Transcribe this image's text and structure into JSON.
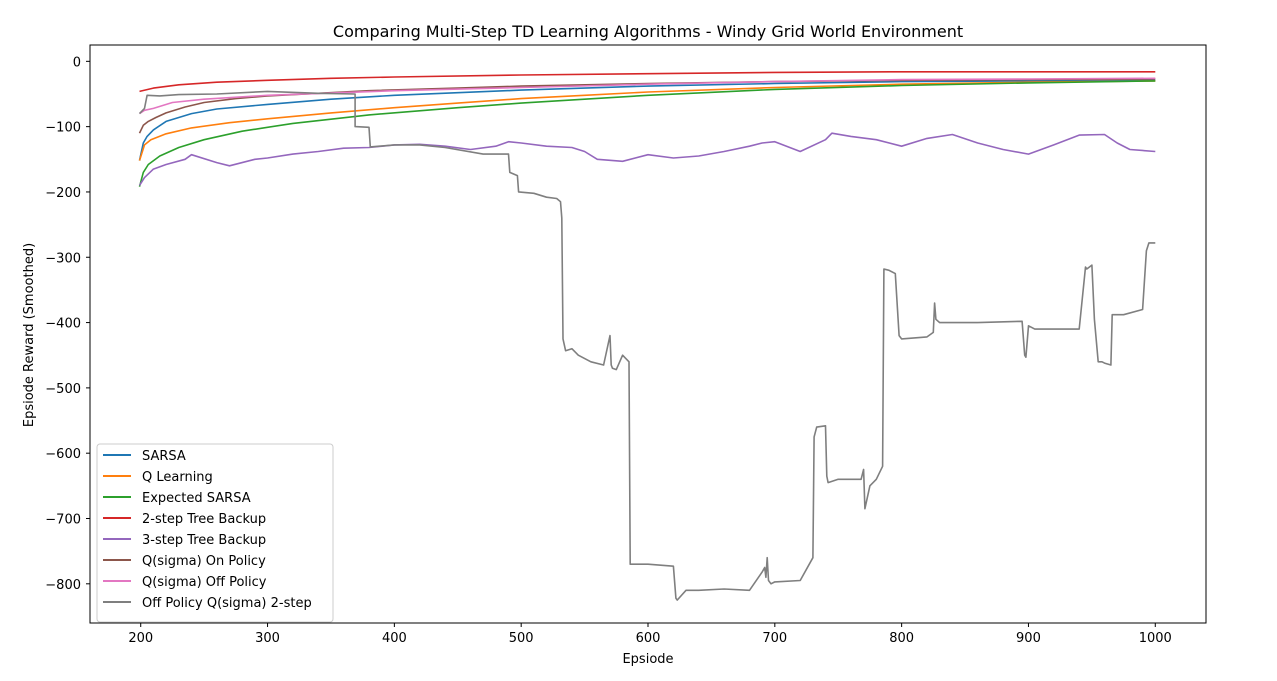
{
  "chart_data": {
    "type": "line",
    "title": "Comparing Multi-Step TD Learning Algorithms - Windy Grid World Environment",
    "xlabel": "Epsiode",
    "ylabel": "Epsiode Reward (Smoothed)",
    "xlim": [
      160,
      1040
    ],
    "ylim": [
      -860,
      25
    ],
    "xticks": [
      200,
      300,
      400,
      500,
      600,
      700,
      800,
      900,
      1000
    ],
    "yticks": [
      0,
      -100,
      -200,
      -300,
      -400,
      -500,
      -600,
      -700,
      -800
    ],
    "xtick_labels": [
      "200",
      "300",
      "400",
      "500",
      "600",
      "700",
      "800",
      "900",
      "1000"
    ],
    "ytick_labels": [
      "0",
      "−100",
      "−200",
      "−300",
      "−400",
      "−500",
      "−600",
      "−700",
      "−800"
    ],
    "grid": false,
    "legend_position": "lower-left",
    "series": [
      {
        "name": "SARSA",
        "color": "#1f77b4",
        "x": [
          199,
          202,
          205,
          210,
          220,
          240,
          260,
          300,
          350,
          400,
          500,
          600,
          700,
          800,
          900,
          1000
        ],
        "y": [
          -152,
          -125,
          -115,
          -105,
          -92,
          -80,
          -73,
          -66,
          -58,
          -52,
          -44,
          -38,
          -34,
          -31,
          -30,
          -29
        ]
      },
      {
        "name": "Q Learning",
        "color": "#ff7f0e",
        "x": [
          199,
          203,
          208,
          220,
          240,
          270,
          300,
          350,
          400,
          450,
          500,
          550,
          600,
          700,
          800,
          900,
          1000
        ],
        "y": [
          -152,
          -128,
          -120,
          -111,
          -102,
          -94,
          -88,
          -79,
          -71,
          -64,
          -57,
          -52,
          -47,
          -40,
          -35,
          -32,
          -30
        ]
      },
      {
        "name": "Expected SARSA",
        "color": "#2ca02c",
        "x": [
          199,
          202,
          206,
          215,
          230,
          250,
          280,
          320,
          380,
          450,
          500,
          550,
          600,
          700,
          800,
          900,
          1000
        ],
        "y": [
          -192,
          -170,
          -158,
          -145,
          -132,
          -120,
          -107,
          -95,
          -82,
          -71,
          -64,
          -58,
          -52,
          -43,
          -37,
          -33,
          -30
        ]
      },
      {
        "name": "2-step Tree Backup",
        "color": "#d62728",
        "x": [
          199,
          210,
          230,
          260,
          300,
          350,
          400,
          500,
          600,
          700,
          800,
          900,
          1000
        ],
        "y": [
          -46,
          -41,
          -36,
          -32,
          -29,
          -26,
          -24,
          -21,
          -19,
          -17,
          -16,
          -16,
          -16
        ]
      },
      {
        "name": "3-step Tree Backup",
        "color": "#9467bd",
        "x": [
          199,
          203,
          210,
          220,
          235,
          240,
          260,
          270,
          290,
          300,
          320,
          340,
          360,
          380,
          400,
          420,
          440,
          460,
          480,
          490,
          500,
          520,
          540,
          550,
          560,
          580,
          600,
          620,
          640,
          660,
          680,
          690,
          700,
          720,
          740,
          745,
          760,
          780,
          800,
          820,
          840,
          860,
          880,
          900,
          920,
          940,
          960,
          970,
          980,
          1000
        ],
        "y": [
          -190,
          -178,
          -165,
          -158,
          -150,
          -143,
          -155,
          -160,
          -150,
          -148,
          -142,
          -138,
          -133,
          -132,
          -128,
          -127,
          -130,
          -135,
          -130,
          -123,
          -125,
          -130,
          -132,
          -138,
          -150,
          -153,
          -143,
          -148,
          -145,
          -138,
          -130,
          -125,
          -123,
          -138,
          -120,
          -110,
          -115,
          -120,
          -130,
          -118,
          -112,
          -125,
          -135,
          -142,
          -128,
          -113,
          -112,
          -125,
          -135,
          -138
        ]
      },
      {
        "name": "Q(sigma) On Policy",
        "color": "#8c564b",
        "x": [
          199,
          202,
          206,
          212,
          220,
          235,
          250,
          275,
          300,
          340,
          380,
          450,
          500,
          600,
          700,
          800,
          900,
          1000
        ],
        "y": [
          -110,
          -98,
          -92,
          -86,
          -79,
          -70,
          -63,
          -57,
          -53,
          -49,
          -45,
          -41,
          -38,
          -34,
          -31,
          -29,
          -28,
          -27
        ]
      },
      {
        "name": "Q(sigma) Off Policy",
        "color": "#e377c2",
        "x": [
          199,
          203,
          210,
          225,
          250,
          300,
          400,
          500,
          600,
          700,
          800,
          900,
          1000
        ],
        "y": [
          -80,
          -75,
          -72,
          -63,
          -58,
          -52,
          -45,
          -40,
          -35,
          -31,
          -28,
          -27,
          -26
        ]
      },
      {
        "name": "Off Policy Q(sigma) 2-step",
        "color": "#7f7f7f",
        "x": [
          199,
          203,
          205,
          215,
          230,
          260,
          300,
          340,
          369,
          369,
          380,
          381,
          400,
          420,
          440,
          470,
          490,
          491,
          497,
          498,
          510,
          520,
          528,
          531,
          532,
          533,
          535,
          540,
          545,
          555,
          565,
          570,
          571,
          572,
          575,
          580,
          585,
          586,
          600,
          620,
          622,
          623,
          630,
          640,
          660,
          680,
          690,
          692,
          693,
          694,
          695,
          697,
          700,
          720,
          730,
          731,
          733,
          740,
          741,
          742,
          750,
          768,
          770,
          771,
          775,
          780,
          785,
          786,
          790,
          795,
          798,
          800,
          820,
          825,
          826,
          827,
          830,
          860,
          895,
          897,
          898,
          900,
          905,
          910,
          940,
          945,
          946,
          950,
          952,
          955,
          958,
          960,
          965,
          966,
          975,
          990,
          993,
          995,
          1000
        ],
        "y": [
          -80,
          -72,
          -52,
          -53,
          -51,
          -50,
          -46,
          -49,
          -50,
          -100,
          -101,
          -131,
          -128,
          -128,
          -132,
          -142,
          -142,
          -170,
          -175,
          -200,
          -202,
          -208,
          -210,
          -215,
          -240,
          -425,
          -443,
          -440,
          -450,
          -460,
          -465,
          -420,
          -465,
          -470,
          -472,
          -450,
          -460,
          -770,
          -770,
          -773,
          -822,
          -825,
          -810,
          -810,
          -808,
          -810,
          -782,
          -775,
          -790,
          -760,
          -795,
          -800,
          -797,
          -795,
          -760,
          -575,
          -560,
          -558,
          -635,
          -645,
          -640,
          -640,
          -625,
          -685,
          -650,
          -640,
          -620,
          -318,
          -320,
          -325,
          -420,
          -425,
          -422,
          -415,
          -370,
          -395,
          -400,
          -400,
          -398,
          -450,
          -453,
          -405,
          -410,
          -410,
          -410,
          -315,
          -318,
          -312,
          -395,
          -460,
          -460,
          -462,
          -465,
          -388,
          -388,
          -380,
          -290,
          -278,
          -278
        ]
      }
    ]
  }
}
